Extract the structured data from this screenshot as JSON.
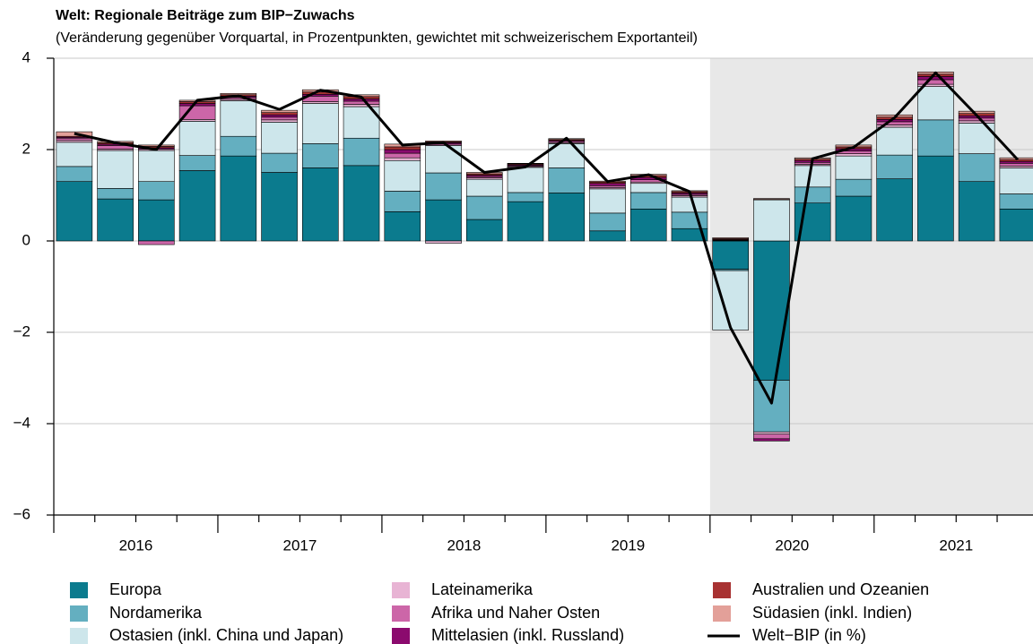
{
  "chart_data": {
    "type": "bar",
    "title": "Welt: Regionale Beiträge zum BIP−Zuwachs",
    "subtitle": "(Veränderung gegenüber Vorquartal, in Prozentpunkten, gewichtet mit schweizerischem Exportanteil)",
    "categories": [
      null,
      null,
      null,
      null,
      null,
      null,
      null,
      null,
      null,
      null,
      null,
      null,
      null,
      null,
      null,
      null,
      null,
      null,
      null,
      null,
      null,
      null,
      null,
      null
    ],
    "x_group_labels": [
      "2016",
      "2017",
      "2018",
      "2019",
      "2020",
      "2021"
    ],
    "ylim": [
      -6,
      4
    ],
    "yticks": [
      {
        "value": -6,
        "label": "−6"
      },
      {
        "value": -4,
        "label": "−4"
      },
      {
        "value": -2,
        "label": "−2"
      },
      0,
      2,
      4
    ],
    "grid": true,
    "stacked": true,
    "series": [
      {
        "name": "Europa",
        "color": "#0b7b8e",
        "values": [
          1.3,
          0.92,
          0.9,
          1.54,
          1.86,
          1.5,
          1.6,
          1.65,
          0.64,
          0.9,
          0.47,
          0.86,
          1.05,
          0.22,
          0.7,
          0.27,
          -0.62,
          -3.05,
          0.83,
          0.98,
          1.36,
          1.86,
          1.3,
          0.7
        ]
      },
      {
        "name": "Nordamerika",
        "color": "#64afc0",
        "values": [
          0.33,
          0.23,
          0.4,
          0.33,
          0.43,
          0.42,
          0.53,
          0.6,
          0.45,
          0.59,
          0.51,
          0.2,
          0.55,
          0.39,
          0.36,
          0.36,
          -0.03,
          -1.13,
          0.35,
          0.37,
          0.52,
          0.79,
          0.61,
          0.33
        ]
      },
      {
        "name": "Ostasien (inkl. China und Japan)",
        "color": "#cde6eb",
        "values": [
          0.53,
          0.83,
          0.68,
          0.75,
          0.78,
          0.68,
          0.88,
          0.69,
          0.67,
          0.6,
          0.37,
          0.55,
          0.53,
          0.53,
          0.2,
          0.33,
          -1.3,
          0.9,
          0.47,
          0.51,
          0.61,
          0.73,
          0.67,
          0.57
        ]
      },
      {
        "name": "Lateinamerika",
        "color": "#e8b4d4",
        "values": [
          0.04,
          0.03,
          0.03,
          0.04,
          0.03,
          0.05,
          0.04,
          0.05,
          0.06,
          -0.05,
          0.03,
          0.02,
          0.02,
          0.03,
          0.03,
          0.03,
          0.01,
          -0.05,
          0.03,
          0.05,
          0.05,
          0.05,
          0.05,
          0.04
        ]
      },
      {
        "name": "Afrika und Naher Osten",
        "color": "#cc66a8",
        "values": [
          0.05,
          0.08,
          -0.08,
          0.3,
          0.04,
          0.06,
          0.12,
          0.07,
          0.1,
          0.03,
          0.03,
          0.02,
          0.03,
          0.04,
          0.05,
          0.03,
          0.01,
          -0.1,
          0.04,
          0.06,
          0.07,
          0.1,
          0.06,
          0.06
        ]
      },
      {
        "name": "Mittelasien (inkl. Russland)",
        "color": "#8b0a6e",
        "values": [
          0.02,
          0.03,
          0.03,
          0.05,
          0.03,
          0.05,
          0.04,
          0.05,
          0.08,
          0.03,
          0.03,
          0.02,
          0.02,
          0.05,
          0.05,
          0.03,
          0.01,
          -0.05,
          0.04,
          0.05,
          0.05,
          0.07,
          0.05,
          0.04
        ]
      },
      {
        "name": "Australien und Ozeanien",
        "color": "#a83232",
        "values": [
          0.02,
          0.03,
          0.03,
          0.04,
          0.03,
          0.05,
          0.05,
          0.05,
          0.06,
          0.02,
          0.03,
          0.02,
          0.02,
          0.03,
          0.04,
          0.03,
          0.02,
          0.01,
          0.03,
          0.04,
          0.05,
          0.05,
          0.05,
          0.04
        ]
      },
      {
        "name": "Südasien (inkl. Indien)",
        "color": "#e3a099",
        "values": [
          0.1,
          0.03,
          0.03,
          0.03,
          0.03,
          0.05,
          0.05,
          0.04,
          0.06,
          0.02,
          0.03,
          0.01,
          0.02,
          0.02,
          0.03,
          0.02,
          0.02,
          0.02,
          0.03,
          0.04,
          0.05,
          0.05,
          0.05,
          0.04
        ]
      },
      {
        "name": "Welt−BIP (in %)",
        "type": "line",
        "color": "#000000",
        "values": [
          2.35,
          2.15,
          2.0,
          3.08,
          3.18,
          2.88,
          3.3,
          3.15,
          2.1,
          2.15,
          1.5,
          1.62,
          2.25,
          1.3,
          1.45,
          1.08,
          -1.9,
          -3.55,
          1.8,
          2.05,
          2.7,
          3.68,
          2.75,
          1.78
        ]
      }
    ]
  }
}
